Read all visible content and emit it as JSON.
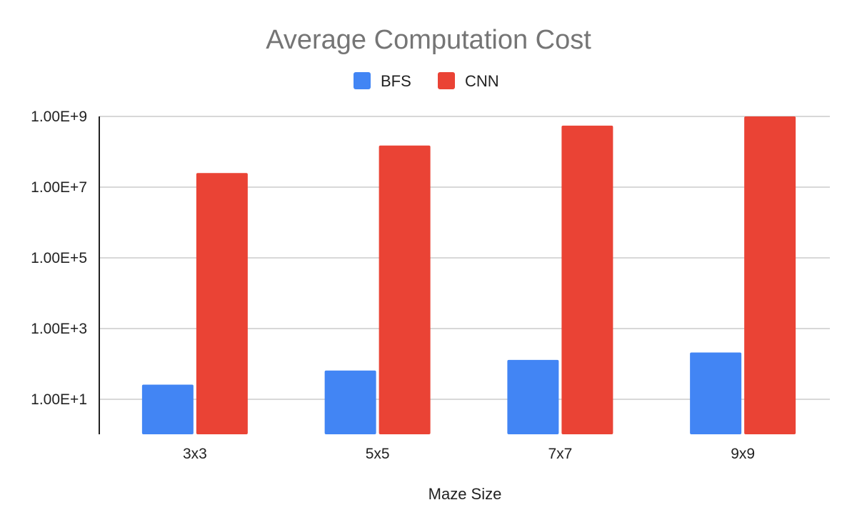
{
  "chart_data": {
    "type": "bar",
    "title": "Average Computation Cost",
    "xlabel": "Maze Size",
    "ylabel": "",
    "categories": [
      "3x3",
      "5x5",
      "7x7",
      "9x9"
    ],
    "series": [
      {
        "name": "BFS",
        "color": "#4285f4",
        "values": [
          26,
          65,
          130,
          210
        ]
      },
      {
        "name": "CNN",
        "color": "#ea4335",
        "values": [
          25000000,
          150000000,
          550000000,
          1000000000
        ]
      }
    ],
    "y_scale": "log",
    "ylim": [
      1,
      1000000000
    ],
    "y_ticks": [
      {
        "value": 10,
        "label": "1.00E+1"
      },
      {
        "value": 1000,
        "label": "1.00E+3"
      },
      {
        "value": 100000,
        "label": "1.00E+5"
      },
      {
        "value": 10000000,
        "label": "1.00E+7"
      },
      {
        "value": 1000000000,
        "label": "1.00E+9"
      }
    ],
    "grid": true,
    "legend_position": "top-center"
  }
}
